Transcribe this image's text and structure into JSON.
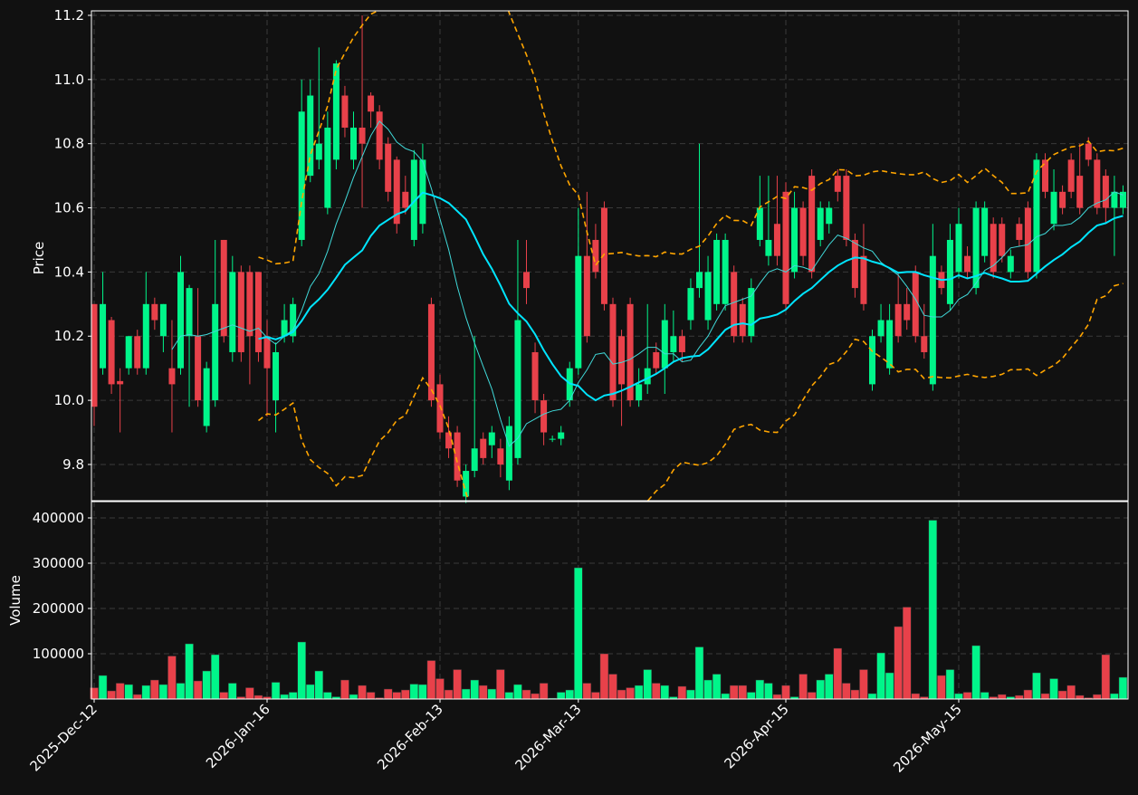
{
  "chart_data": {
    "type": "candlestick",
    "categories": [
      "2025-Dec-12",
      null,
      null,
      null,
      null,
      null,
      null,
      null,
      null,
      null,
      null,
      null,
      null,
      null,
      null,
      null,
      null,
      null,
      null,
      null,
      "2026-Jan-16",
      null,
      null,
      null,
      null,
      null,
      null,
      null,
      null,
      null,
      null,
      null,
      null,
      null,
      null,
      null,
      null,
      null,
      null,
      null,
      "2026-Feb-13",
      null,
      null,
      null,
      null,
      null,
      null,
      null,
      null,
      null,
      null,
      null,
      null,
      null,
      null,
      null,
      "2026-Mar-13",
      null,
      null,
      null,
      null,
      null,
      null,
      null,
      null,
      null,
      null,
      null,
      null,
      null,
      null,
      null,
      null,
      null,
      null,
      null,
      null,
      null,
      null,
      null,
      "2026-Apr-15",
      null,
      null,
      null,
      null,
      null,
      null,
      null,
      null,
      null,
      null,
      null,
      null,
      null,
      null,
      null,
      null,
      null,
      null,
      null,
      "2026-May-15",
      null,
      null,
      null,
      null,
      null,
      null,
      null,
      null,
      null,
      null,
      null,
      null,
      null,
      null,
      null,
      null,
      null,
      null,
      null
    ],
    "candles": [
      [
        10.3,
        10.3,
        9.92,
        9.98
      ],
      [
        10.1,
        10.4,
        10.08,
        10.3
      ],
      [
        10.25,
        10.26,
        10.02,
        10.05
      ],
      [
        10.06,
        10.1,
        9.9,
        10.05
      ],
      [
        10.1,
        10.2,
        10.08,
        10.2
      ],
      [
        10.2,
        10.22,
        10.08,
        10.1
      ],
      [
        10.1,
        10.4,
        10.08,
        10.3
      ],
      [
        10.3,
        10.32,
        10.22,
        10.25
      ],
      [
        10.2,
        10.3,
        10.15,
        10.3
      ],
      [
        10.1,
        10.25,
        9.9,
        10.05
      ],
      [
        10.1,
        10.45,
        10.08,
        10.4
      ],
      [
        10.2,
        10.36,
        9.98,
        10.35
      ],
      [
        10.2,
        10.35,
        9.98,
        10.0
      ],
      [
        9.92,
        10.12,
        9.9,
        10.1
      ],
      [
        10.0,
        10.5,
        9.98,
        10.3
      ],
      [
        10.5,
        10.5,
        10.18,
        10.2
      ],
      [
        10.15,
        10.45,
        10.12,
        10.4
      ],
      [
        10.4,
        10.42,
        10.12,
        10.15
      ],
      [
        10.4,
        10.42,
        10.05,
        10.2
      ],
      [
        10.4,
        10.4,
        10.12,
        10.15
      ],
      [
        10.2,
        10.25,
        9.95,
        10.1
      ],
      [
        10.0,
        10.18,
        9.9,
        10.15
      ],
      [
        10.2,
        10.3,
        10.18,
        10.25
      ],
      [
        10.2,
        10.32,
        10.18,
        10.3
      ],
      [
        10.5,
        11.0,
        10.48,
        10.9
      ],
      [
        10.7,
        11.0,
        10.68,
        10.95
      ],
      [
        10.75,
        11.1,
        10.72,
        10.8
      ],
      [
        10.6,
        10.9,
        10.58,
        10.85
      ],
      [
        10.75,
        11.06,
        10.72,
        11.05
      ],
      [
        10.95,
        10.98,
        10.82,
        10.85
      ],
      [
        10.75,
        10.9,
        10.72,
        10.85
      ],
      [
        10.85,
        11.2,
        10.6,
        10.8
      ],
      [
        10.95,
        10.96,
        10.85,
        10.9
      ],
      [
        10.9,
        10.92,
        10.72,
        10.75
      ],
      [
        10.8,
        10.82,
        10.62,
        10.65
      ],
      [
        10.75,
        10.76,
        10.52,
        10.55
      ],
      [
        10.65,
        10.7,
        10.58,
        10.6
      ],
      [
        10.5,
        10.78,
        10.48,
        10.75
      ],
      [
        10.55,
        10.8,
        10.52,
        10.75
      ],
      [
        10.3,
        10.32,
        9.98,
        10.0
      ],
      [
        10.05,
        10.08,
        9.88,
        9.9
      ],
      [
        9.9,
        9.95,
        9.82,
        9.85
      ],
      [
        9.9,
        9.92,
        9.73,
        9.75
      ],
      [
        9.7,
        9.8,
        9.68,
        9.78
      ],
      [
        9.78,
        10.2,
        9.76,
        9.85
      ],
      [
        9.88,
        9.9,
        9.8,
        9.82
      ],
      [
        9.86,
        9.92,
        9.82,
        9.9
      ],
      [
        9.85,
        9.88,
        9.76,
        9.8
      ],
      [
        9.75,
        9.95,
        9.72,
        9.92
      ],
      [
        9.82,
        10.5,
        9.8,
        10.25
      ],
      [
        10.4,
        10.5,
        10.3,
        10.35
      ],
      [
        10.15,
        10.18,
        9.96,
        10.0
      ],
      [
        10.0,
        10.02,
        9.86,
        9.9
      ],
      [
        9.88,
        9.89,
        9.87,
        9.88
      ],
      [
        9.88,
        9.92,
        9.86,
        9.9
      ],
      [
        10.0,
        10.12,
        9.98,
        10.1
      ],
      [
        10.1,
        10.6,
        10.08,
        10.45
      ],
      [
        10.45,
        10.65,
        10.18,
        10.2
      ],
      [
        10.5,
        10.55,
        10.38,
        10.4
      ],
      [
        10.6,
        10.62,
        10.28,
        10.3
      ],
      [
        10.3,
        10.32,
        9.98,
        10.0
      ],
      [
        10.2,
        10.22,
        9.92,
        10.05
      ],
      [
        10.3,
        10.32,
        9.98,
        10.0
      ],
      [
        10.0,
        10.1,
        9.98,
        10.05
      ],
      [
        10.05,
        10.3,
        10.02,
        10.1
      ],
      [
        10.15,
        10.18,
        10.08,
        10.1
      ],
      [
        10.1,
        10.3,
        10.02,
        10.25
      ],
      [
        10.15,
        10.28,
        10.12,
        10.2
      ],
      [
        10.2,
        10.22,
        10.12,
        10.15
      ],
      [
        10.25,
        10.38,
        10.22,
        10.35
      ],
      [
        10.35,
        10.8,
        10.32,
        10.4
      ],
      [
        10.25,
        10.45,
        10.22,
        10.4
      ],
      [
        10.3,
        10.52,
        10.28,
        10.5
      ],
      [
        10.3,
        10.52,
        10.28,
        10.5
      ],
      [
        10.4,
        10.42,
        10.18,
        10.2
      ],
      [
        10.3,
        10.32,
        10.18,
        10.2
      ],
      [
        10.2,
        10.38,
        10.18,
        10.35
      ],
      [
        10.5,
        10.7,
        10.48,
        10.6
      ],
      [
        10.45,
        10.7,
        10.42,
        10.5
      ],
      [
        10.55,
        10.7,
        10.42,
        10.45
      ],
      [
        10.65,
        10.68,
        10.28,
        10.3
      ],
      [
        10.4,
        10.65,
        10.38,
        10.6
      ],
      [
        10.6,
        10.62,
        10.42,
        10.45
      ],
      [
        10.7,
        10.72,
        10.38,
        10.4
      ],
      [
        10.5,
        10.62,
        10.48,
        10.6
      ],
      [
        10.55,
        10.62,
        10.52,
        10.6
      ],
      [
        10.7,
        10.72,
        10.62,
        10.65
      ],
      [
        10.7,
        10.72,
        10.48,
        10.5
      ],
      [
        10.5,
        10.52,
        10.32,
        10.35
      ],
      [
        10.45,
        10.55,
        10.28,
        10.3
      ],
      [
        10.05,
        10.22,
        10.03,
        10.2
      ],
      [
        10.2,
        10.3,
        10.18,
        10.25
      ],
      [
        10.1,
        10.3,
        10.08,
        10.25
      ],
      [
        10.3,
        10.4,
        10.18,
        10.2
      ],
      [
        10.3,
        10.35,
        10.22,
        10.25
      ],
      [
        10.4,
        10.42,
        10.18,
        10.2
      ],
      [
        10.2,
        10.3,
        10.13,
        10.15
      ],
      [
        10.05,
        10.55,
        10.03,
        10.45
      ],
      [
        10.4,
        10.42,
        10.33,
        10.35
      ],
      [
        10.3,
        10.55,
        10.28,
        10.5
      ],
      [
        10.4,
        10.6,
        10.38,
        10.55
      ],
      [
        10.45,
        10.48,
        10.38,
        10.4
      ],
      [
        10.35,
        10.62,
        10.33,
        10.6
      ],
      [
        10.45,
        10.62,
        10.43,
        10.6
      ],
      [
        10.55,
        10.57,
        10.38,
        10.4
      ],
      [
        10.55,
        10.57,
        10.43,
        10.45
      ],
      [
        10.4,
        10.47,
        10.38,
        10.45
      ],
      [
        10.55,
        10.57,
        10.48,
        10.5
      ],
      [
        10.6,
        10.62,
        10.38,
        10.4
      ],
      [
        10.4,
        10.77,
        10.38,
        10.75
      ],
      [
        10.75,
        10.77,
        10.63,
        10.65
      ],
      [
        10.55,
        10.72,
        10.53,
        10.65
      ],
      [
        10.65,
        10.67,
        10.58,
        10.6
      ],
      [
        10.75,
        10.77,
        10.63,
        10.65
      ],
      [
        10.7,
        10.8,
        10.58,
        10.6
      ],
      [
        10.8,
        10.82,
        10.73,
        10.75
      ],
      [
        10.75,
        10.77,
        10.58,
        10.6
      ],
      [
        10.7,
        10.72,
        10.55,
        10.6
      ],
      [
        10.6,
        10.7,
        10.45,
        10.65
      ],
      [
        10.6,
        10.67,
        10.58,
        10.65
      ]
    ],
    "volume": [
      25000,
      52000,
      18000,
      35000,
      32000,
      10000,
      30000,
      42000,
      32000,
      95000,
      35000,
      122000,
      40000,
      62000,
      98000,
      15000,
      35000,
      5000,
      25000,
      8000,
      5000,
      37000,
      10000,
      15000,
      126000,
      32000,
      62000,
      15000,
      5000,
      42000,
      10000,
      30000,
      15000,
      3000,
      22000,
      15000,
      20000,
      33000,
      32000,
      85000,
      45000,
      20000,
      65000,
      22000,
      42000,
      30000,
      22000,
      65000,
      15000,
      32000,
      20000,
      12000,
      35000,
      2000,
      15000,
      20000,
      290000,
      35000,
      15000,
      100000,
      55000,
      20000,
      25000,
      30000,
      65000,
      35000,
      30000,
      5000,
      28000,
      20000,
      115000,
      42000,
      55000,
      12000,
      30000,
      30000,
      15000,
      42000,
      35000,
      10000,
      30000,
      5000,
      55000,
      15000,
      42000,
      55000,
      112000,
      35000,
      20000,
      65000,
      12000,
      102000,
      58000,
      160000,
      203000,
      12000,
      5000,
      395000,
      52000,
      65000,
      12000,
      15000,
      118000,
      15000,
      5000,
      10000,
      5000,
      8000,
      20000,
      58000,
      12000,
      45000,
      18000,
      30000,
      8000,
      3000,
      10000,
      98000,
      12000,
      48000
    ],
    "ylabel": "Price",
    "y2label": "Volume",
    "ylim": [
      9.687,
      11.214
    ],
    "yticks": [
      9.8,
      {
        "value": 10,
        "label": "10.0"
      },
      10.2,
      10.4,
      10.6,
      10.8,
      {
        "value": 11,
        "label": "11.0"
      },
      11.2
    ],
    "y2lim": [
      0,
      436000
    ],
    "y2ticks": [
      100000,
      200000,
      300000,
      400000
    ],
    "up_color": "#00f58a",
    "down_color": "#e8414a",
    "mav": [
      10,
      20
    ],
    "mav_colors": [
      "#40d8d8",
      "#00e5ff"
    ],
    "bollinger": {
      "period": 20,
      "std": 2,
      "color": "#ffa500"
    },
    "grid": true
  }
}
